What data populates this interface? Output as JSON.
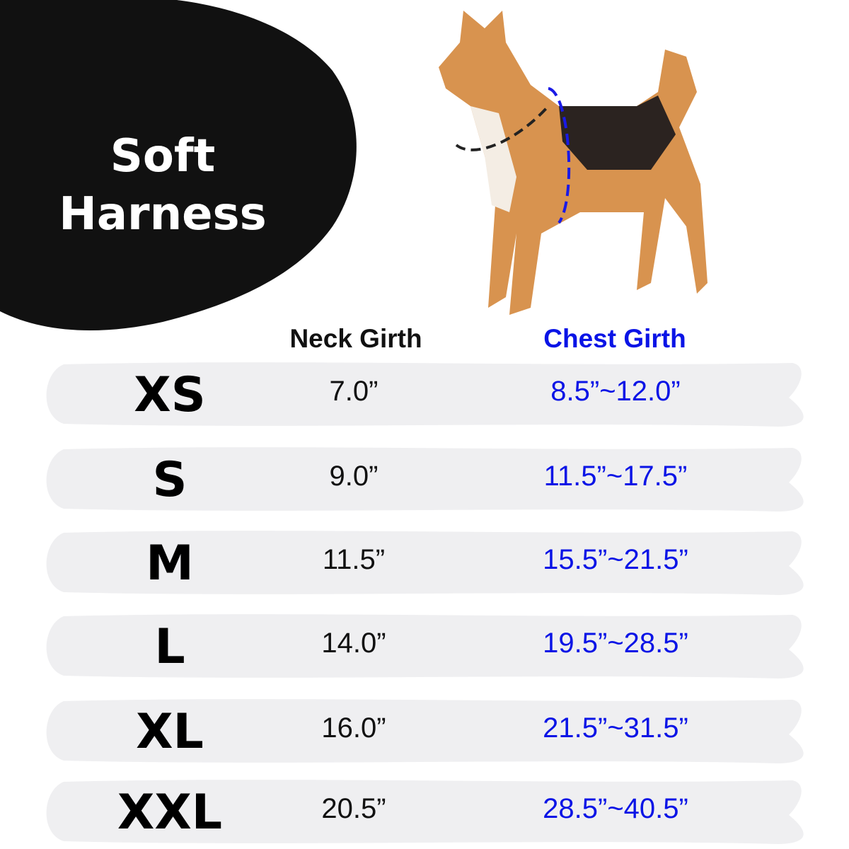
{
  "title": {
    "line1": "Soft",
    "line2": "Harness"
  },
  "headers": {
    "neck": "Neck Girth",
    "chest": "Chest Girth"
  },
  "colors": {
    "chest_text": "#0a14e6",
    "band": "#efeff1",
    "blob": "#111111"
  },
  "rows": [
    {
      "size": "XS",
      "neck": "7.0”",
      "chest": "8.5”~12.0”"
    },
    {
      "size": "S",
      "neck": "9.0”",
      "chest": "11.5”~17.5”"
    },
    {
      "size": "M",
      "neck": "11.5”",
      "chest": "15.5”~21.5”"
    },
    {
      "size": "L",
      "neck": "14.0”",
      "chest": "19.5”~28.5”"
    },
    {
      "size": "XL",
      "neck": "16.0”",
      "chest": "21.5”~31.5”"
    },
    {
      "size": "XXL",
      "neck": "20.5”",
      "chest": "28.5”~40.5”"
    }
  ]
}
